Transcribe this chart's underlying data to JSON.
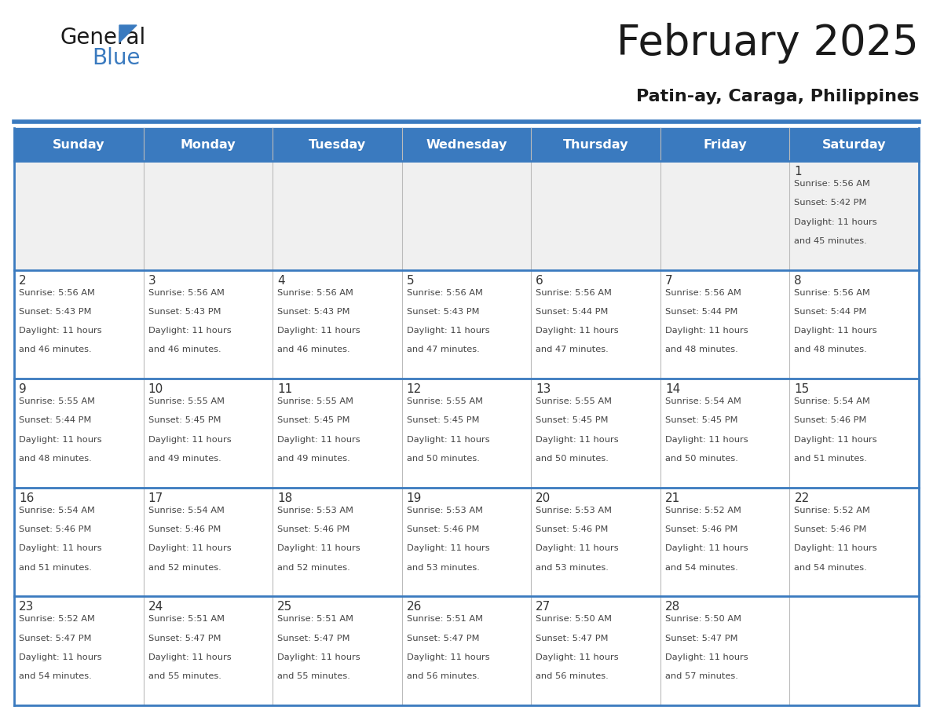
{
  "title": "February 2025",
  "subtitle": "Patin-ay, Caraga, Philippines",
  "days_of_week": [
    "Sunday",
    "Monday",
    "Tuesday",
    "Wednesday",
    "Thursday",
    "Friday",
    "Saturday"
  ],
  "header_bg": "#3a7abf",
  "header_text": "#ffffff",
  "row_bg_first": "#f0f0f0",
  "row_bg_normal": "#ffffff",
  "day_number_color": "#333333",
  "info_text_color": "#444444",
  "separator_color": "#3a7abf",
  "border_color": "#3a7abf",
  "calendar_data": [
    {
      "day": 1,
      "col": 6,
      "row": 0,
      "sunrise": "5:56 AM",
      "sunset": "5:42 PM",
      "daylight": "11 hours and 45 minutes."
    },
    {
      "day": 2,
      "col": 0,
      "row": 1,
      "sunrise": "5:56 AM",
      "sunset": "5:43 PM",
      "daylight": "11 hours and 46 minutes."
    },
    {
      "day": 3,
      "col": 1,
      "row": 1,
      "sunrise": "5:56 AM",
      "sunset": "5:43 PM",
      "daylight": "11 hours and 46 minutes."
    },
    {
      "day": 4,
      "col": 2,
      "row": 1,
      "sunrise": "5:56 AM",
      "sunset": "5:43 PM",
      "daylight": "11 hours and 46 minutes."
    },
    {
      "day": 5,
      "col": 3,
      "row": 1,
      "sunrise": "5:56 AM",
      "sunset": "5:43 PM",
      "daylight": "11 hours and 47 minutes."
    },
    {
      "day": 6,
      "col": 4,
      "row": 1,
      "sunrise": "5:56 AM",
      "sunset": "5:44 PM",
      "daylight": "11 hours and 47 minutes."
    },
    {
      "day": 7,
      "col": 5,
      "row": 1,
      "sunrise": "5:56 AM",
      "sunset": "5:44 PM",
      "daylight": "11 hours and 48 minutes."
    },
    {
      "day": 8,
      "col": 6,
      "row": 1,
      "sunrise": "5:56 AM",
      "sunset": "5:44 PM",
      "daylight": "11 hours and 48 minutes."
    },
    {
      "day": 9,
      "col": 0,
      "row": 2,
      "sunrise": "5:55 AM",
      "sunset": "5:44 PM",
      "daylight": "11 hours and 48 minutes."
    },
    {
      "day": 10,
      "col": 1,
      "row": 2,
      "sunrise": "5:55 AM",
      "sunset": "5:45 PM",
      "daylight": "11 hours and 49 minutes."
    },
    {
      "day": 11,
      "col": 2,
      "row": 2,
      "sunrise": "5:55 AM",
      "sunset": "5:45 PM",
      "daylight": "11 hours and 49 minutes."
    },
    {
      "day": 12,
      "col": 3,
      "row": 2,
      "sunrise": "5:55 AM",
      "sunset": "5:45 PM",
      "daylight": "11 hours and 50 minutes."
    },
    {
      "day": 13,
      "col": 4,
      "row": 2,
      "sunrise": "5:55 AM",
      "sunset": "5:45 PM",
      "daylight": "11 hours and 50 minutes."
    },
    {
      "day": 14,
      "col": 5,
      "row": 2,
      "sunrise": "5:54 AM",
      "sunset": "5:45 PM",
      "daylight": "11 hours and 50 minutes."
    },
    {
      "day": 15,
      "col": 6,
      "row": 2,
      "sunrise": "5:54 AM",
      "sunset": "5:46 PM",
      "daylight": "11 hours and 51 minutes."
    },
    {
      "day": 16,
      "col": 0,
      "row": 3,
      "sunrise": "5:54 AM",
      "sunset": "5:46 PM",
      "daylight": "11 hours and 51 minutes."
    },
    {
      "day": 17,
      "col": 1,
      "row": 3,
      "sunrise": "5:54 AM",
      "sunset": "5:46 PM",
      "daylight": "11 hours and 52 minutes."
    },
    {
      "day": 18,
      "col": 2,
      "row": 3,
      "sunrise": "5:53 AM",
      "sunset": "5:46 PM",
      "daylight": "11 hours and 52 minutes."
    },
    {
      "day": 19,
      "col": 3,
      "row": 3,
      "sunrise": "5:53 AM",
      "sunset": "5:46 PM",
      "daylight": "11 hours and 53 minutes."
    },
    {
      "day": 20,
      "col": 4,
      "row": 3,
      "sunrise": "5:53 AM",
      "sunset": "5:46 PM",
      "daylight": "11 hours and 53 minutes."
    },
    {
      "day": 21,
      "col": 5,
      "row": 3,
      "sunrise": "5:52 AM",
      "sunset": "5:46 PM",
      "daylight": "11 hours and 54 minutes."
    },
    {
      "day": 22,
      "col": 6,
      "row": 3,
      "sunrise": "5:52 AM",
      "sunset": "5:46 PM",
      "daylight": "11 hours and 54 minutes."
    },
    {
      "day": 23,
      "col": 0,
      "row": 4,
      "sunrise": "5:52 AM",
      "sunset": "5:47 PM",
      "daylight": "11 hours and 54 minutes."
    },
    {
      "day": 24,
      "col": 1,
      "row": 4,
      "sunrise": "5:51 AM",
      "sunset": "5:47 PM",
      "daylight": "11 hours and 55 minutes."
    },
    {
      "day": 25,
      "col": 2,
      "row": 4,
      "sunrise": "5:51 AM",
      "sunset": "5:47 PM",
      "daylight": "11 hours and 55 minutes."
    },
    {
      "day": 26,
      "col": 3,
      "row": 4,
      "sunrise": "5:51 AM",
      "sunset": "5:47 PM",
      "daylight": "11 hours and 56 minutes."
    },
    {
      "day": 27,
      "col": 4,
      "row": 4,
      "sunrise": "5:50 AM",
      "sunset": "5:47 PM",
      "daylight": "11 hours and 56 minutes."
    },
    {
      "day": 28,
      "col": 5,
      "row": 4,
      "sunrise": "5:50 AM",
      "sunset": "5:47 PM",
      "daylight": "11 hours and 57 minutes."
    }
  ],
  "num_rows": 5,
  "logo_text1": "General",
  "logo_text2": "Blue",
  "logo_text1_color": "#1a1a1a",
  "logo_text2_color": "#3a7abf",
  "logo_triangle_color": "#3a7abf",
  "title_color": "#1a1a1a",
  "subtitle_color": "#1a1a1a"
}
